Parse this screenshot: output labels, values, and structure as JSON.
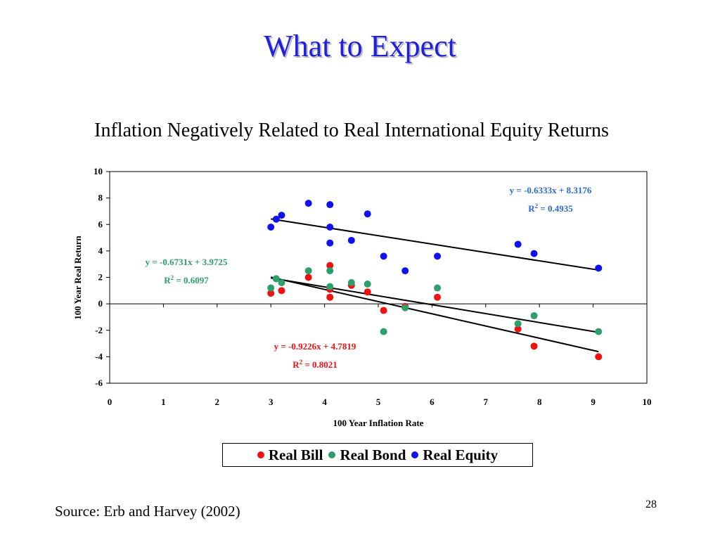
{
  "slide": {
    "title": "What to Expect",
    "subtitle": "Inflation Negatively Related to Real International Equity Returns",
    "source": "Source: Erb and Harvey (2002)",
    "page_number": "28"
  },
  "chart_data": {
    "type": "scatter",
    "title": "",
    "xlabel": "100 Year Inflation Rate",
    "ylabel": "100 Year Real Return",
    "xlim": [
      0,
      10
    ],
    "ylim": [
      -6,
      10
    ],
    "x_ticks": [
      "0",
      "1",
      "2",
      "3",
      "4",
      "5",
      "6",
      "7",
      "8",
      "9",
      "10"
    ],
    "y_ticks": [
      "-6",
      "-4",
      "-2",
      "0",
      "2",
      "4",
      "6",
      "8",
      "10"
    ],
    "grid": false,
    "legend_position": "bottom",
    "series": [
      {
        "name": "Real Bill",
        "color": "#ee1111",
        "points": [
          [
            3.0,
            0.8
          ],
          [
            3.1,
            1.9
          ],
          [
            3.2,
            1.0
          ],
          [
            3.7,
            2.0
          ],
          [
            4.1,
            2.9
          ],
          [
            4.1,
            1.1
          ],
          [
            4.1,
            0.5
          ],
          [
            4.5,
            1.4
          ],
          [
            4.8,
            0.9
          ],
          [
            5.1,
            -0.5
          ],
          [
            5.5,
            -0.2
          ],
          [
            6.1,
            0.5
          ],
          [
            7.6,
            -1.9
          ],
          [
            7.9,
            -3.2
          ],
          [
            9.1,
            -4.0
          ]
        ],
        "trendline": {
          "slope": -0.9226,
          "intercept": 4.7819,
          "x_range": [
            3.0,
            9.1
          ]
        },
        "equation": "y = -0.9226x + 4.7819",
        "r2_label": "R",
        "r2_value": " = 0.8021"
      },
      {
        "name": "Real Bond",
        "color": "#2e9e6a",
        "points": [
          [
            3.0,
            1.2
          ],
          [
            3.1,
            1.9
          ],
          [
            3.2,
            1.6
          ],
          [
            3.7,
            2.5
          ],
          [
            4.1,
            2.5
          ],
          [
            4.1,
            1.3
          ],
          [
            4.5,
            1.6
          ],
          [
            4.8,
            1.5
          ],
          [
            5.1,
            -2.1
          ],
          [
            5.5,
            -0.3
          ],
          [
            6.1,
            1.2
          ],
          [
            7.6,
            -1.5
          ],
          [
            7.9,
            -0.9
          ],
          [
            9.1,
            -2.1
          ]
        ],
        "trendline": {
          "slope": -0.6731,
          "intercept": 3.9725,
          "x_range": [
            3.0,
            9.1
          ]
        },
        "equation": "y = -0.6731x + 3.9725",
        "r2_label": "R",
        "r2_value": " = 0.6097"
      },
      {
        "name": "Real Equity",
        "color": "#1111ee",
        "points": [
          [
            3.0,
            5.8
          ],
          [
            3.1,
            6.4
          ],
          [
            3.2,
            6.7
          ],
          [
            3.7,
            7.6
          ],
          [
            4.1,
            7.5
          ],
          [
            4.1,
            5.8
          ],
          [
            4.1,
            4.6
          ],
          [
            4.5,
            4.8
          ],
          [
            4.8,
            6.8
          ],
          [
            5.1,
            3.6
          ],
          [
            5.5,
            2.5
          ],
          [
            6.1,
            3.6
          ],
          [
            7.6,
            4.5
          ],
          [
            7.9,
            3.8
          ],
          [
            9.1,
            2.7
          ]
        ],
        "trendline": {
          "slope": -0.6333,
          "intercept": 8.3176,
          "x_range": [
            3.0,
            9.1
          ]
        },
        "equation": "y = -0.6333x + 8.3176",
        "r2_label": "R",
        "r2_value": " = 0.4935"
      }
    ]
  }
}
